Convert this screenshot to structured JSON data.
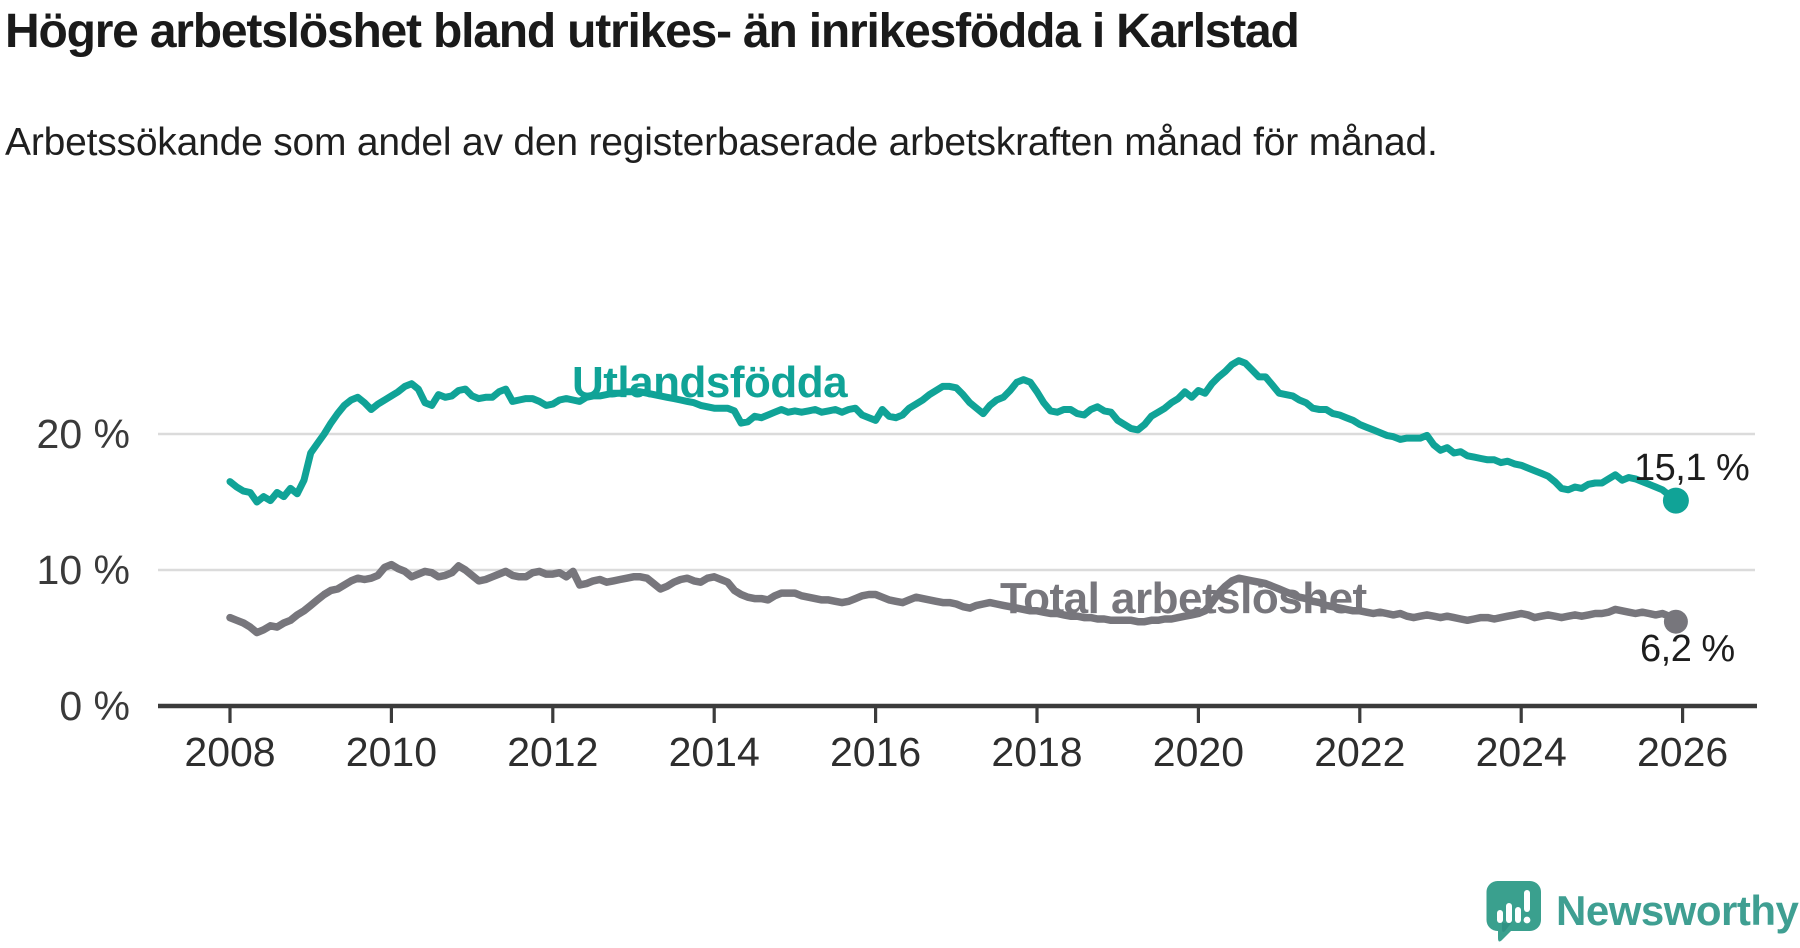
{
  "header": {
    "title": "Högre arbetslöshet bland utrikes- än inrikesfödda i Karlstad",
    "subtitle": "Arbetssökande som andel av den registerbaserade arbetskraften månad för månad."
  },
  "branding": {
    "name": "Newsworthy",
    "logo_icon": "speech-bubble-bar-chart",
    "brand_color": "#3f9f92"
  },
  "chart_data": {
    "type": "line",
    "title": "Högre arbetslöshet bland utrikes- än inrikesfödda i Karlstad",
    "subtitle": "Arbetssökande som andel av den registerbaserade arbetskraften månad för månad.",
    "unit": "%",
    "grid": "horizontal",
    "legend_position": "inline-labels",
    "xlim": [
      2007.1,
      2026.93
    ],
    "ylim": [
      0,
      26.5
    ],
    "x_ticks": [
      2008,
      2010,
      2012,
      2014,
      2016,
      2018,
      2020,
      2022,
      2024,
      2026
    ],
    "y_ticks": [
      {
        "value": 0,
        "label": "0 %"
      },
      {
        "value": 10,
        "label": "10 %"
      },
      {
        "value": 20,
        "label": "20 %"
      }
    ],
    "start_year": 2008,
    "frequency": "monthly",
    "axis_color": "#3b3b3b",
    "gridline_color": "#dbdbdb",
    "series": [
      {
        "name": "Utlandsfödda",
        "color": "#10a397",
        "end_label": "15,1 %",
        "last_value": 15.1,
        "values": [
          16.5,
          16.1,
          15.8,
          15.7,
          15.0,
          15.4,
          15.1,
          15.7,
          15.4,
          16.0,
          15.6,
          16.6,
          18.6,
          19.3,
          20.0,
          20.8,
          21.5,
          22.1,
          22.5,
          22.7,
          22.3,
          21.8,
          22.2,
          22.5,
          22.8,
          23.1,
          23.5,
          23.7,
          23.3,
          22.3,
          22.1,
          22.9,
          22.7,
          22.8,
          23.2,
          23.3,
          22.8,
          22.6,
          22.7,
          22.7,
          23.1,
          23.3,
          22.4,
          22.5,
          22.6,
          22.6,
          22.4,
          22.1,
          22.2,
          22.5,
          22.6,
          22.5,
          22.4,
          22.7,
          22.8,
          22.8,
          22.9,
          23.0,
          23.0,
          23.1,
          23.1,
          23.1,
          23.0,
          22.9,
          22.8,
          22.7,
          22.6,
          22.5,
          22.4,
          22.3,
          22.1,
          22.0,
          21.9,
          21.9,
          21.9,
          21.7,
          20.8,
          20.9,
          21.3,
          21.2,
          21.4,
          21.6,
          21.8,
          21.6,
          21.7,
          21.6,
          21.7,
          21.8,
          21.6,
          21.7,
          21.8,
          21.6,
          21.8,
          21.9,
          21.4,
          21.2,
          21.0,
          21.8,
          21.3,
          21.2,
          21.4,
          21.9,
          22.2,
          22.5,
          22.9,
          23.2,
          23.5,
          23.5,
          23.4,
          22.9,
          22.3,
          21.9,
          21.5,
          22.1,
          22.5,
          22.7,
          23.2,
          23.8,
          24.0,
          23.8,
          23.1,
          22.3,
          21.7,
          21.6,
          21.8,
          21.8,
          21.5,
          21.4,
          21.8,
          22.0,
          21.7,
          21.6,
          21.0,
          20.7,
          20.4,
          20.3,
          20.7,
          21.3,
          21.6,
          21.9,
          22.3,
          22.6,
          23.1,
          22.7,
          23.2,
          23.0,
          23.7,
          24.2,
          24.6,
          25.1,
          25.4,
          25.2,
          24.7,
          24.2,
          24.2,
          23.6,
          23.0,
          22.9,
          22.8,
          22.5,
          22.3,
          21.9,
          21.8,
          21.8,
          21.5,
          21.4,
          21.2,
          21.0,
          20.7,
          20.5,
          20.3,
          20.1,
          19.9,
          19.8,
          19.6,
          19.7,
          19.7,
          19.7,
          19.9,
          19.2,
          18.8,
          19.0,
          18.6,
          18.7,
          18.4,
          18.3,
          18.2,
          18.1,
          18.1,
          17.9,
          18.0,
          17.8,
          17.7,
          17.5,
          17.3,
          17.1,
          16.9,
          16.5,
          16.0,
          15.9,
          16.1,
          16.0,
          16.3,
          16.4,
          16.4,
          16.7,
          17.0,
          16.6,
          16.8,
          16.7,
          16.5,
          16.3,
          16.1,
          15.9,
          15.5,
          15.1
        ]
      },
      {
        "name": "Total arbetslöshet",
        "color": "#77767c",
        "end_label": "6,2 %",
        "last_value": 6.2,
        "values": [
          6.5,
          6.3,
          6.1,
          5.8,
          5.4,
          5.6,
          5.9,
          5.8,
          6.1,
          6.3,
          6.7,
          7.0,
          7.4,
          7.8,
          8.2,
          8.5,
          8.6,
          8.9,
          9.2,
          9.4,
          9.3,
          9.4,
          9.6,
          10.2,
          10.4,
          10.1,
          9.9,
          9.5,
          9.7,
          9.9,
          9.8,
          9.5,
          9.6,
          9.8,
          10.3,
          10.0,
          9.6,
          9.2,
          9.3,
          9.5,
          9.7,
          9.9,
          9.6,
          9.5,
          9.5,
          9.8,
          9.9,
          9.7,
          9.7,
          9.8,
          9.5,
          9.9,
          8.9,
          9.0,
          9.2,
          9.3,
          9.1,
          9.2,
          9.3,
          9.4,
          9.5,
          9.5,
          9.4,
          9.0,
          8.6,
          8.8,
          9.1,
          9.3,
          9.4,
          9.2,
          9.1,
          9.4,
          9.5,
          9.3,
          9.1,
          8.5,
          8.2,
          8.0,
          7.9,
          7.9,
          7.8,
          8.1,
          8.3,
          8.3,
          8.3,
          8.1,
          8.0,
          7.9,
          7.8,
          7.8,
          7.7,
          7.6,
          7.7,
          7.9,
          8.1,
          8.2,
          8.2,
          8.0,
          7.8,
          7.7,
          7.6,
          7.8,
          8.0,
          7.9,
          7.8,
          7.7,
          7.6,
          7.6,
          7.5,
          7.3,
          7.2,
          7.4,
          7.5,
          7.6,
          7.5,
          7.4,
          7.3,
          7.2,
          7.1,
          7.0,
          7.0,
          6.9,
          6.8,
          6.8,
          6.7,
          6.6,
          6.6,
          6.5,
          6.5,
          6.4,
          6.4,
          6.3,
          6.3,
          6.3,
          6.3,
          6.2,
          6.2,
          6.3,
          6.3,
          6.4,
          6.4,
          6.5,
          6.6,
          6.7,
          6.8,
          7.0,
          7.6,
          8.3,
          8.8,
          9.2,
          9.4,
          9.3,
          9.2,
          9.1,
          9.0,
          8.8,
          8.6,
          8.4,
          8.2,
          8.0,
          7.9,
          7.7,
          7.6,
          7.4,
          7.3,
          7.2,
          7.1,
          7.0,
          7.0,
          6.9,
          6.8,
          6.9,
          6.8,
          6.7,
          6.8,
          6.6,
          6.5,
          6.6,
          6.7,
          6.6,
          6.5,
          6.6,
          6.5,
          6.4,
          6.3,
          6.4,
          6.5,
          6.5,
          6.4,
          6.5,
          6.6,
          6.7,
          6.8,
          6.7,
          6.5,
          6.6,
          6.7,
          6.6,
          6.5,
          6.6,
          6.7,
          6.6,
          6.7,
          6.8,
          6.8,
          6.9,
          7.1,
          7.0,
          6.9,
          6.8,
          6.9,
          6.8,
          6.7,
          6.8,
          6.6,
          6.2
        ]
      }
    ]
  }
}
